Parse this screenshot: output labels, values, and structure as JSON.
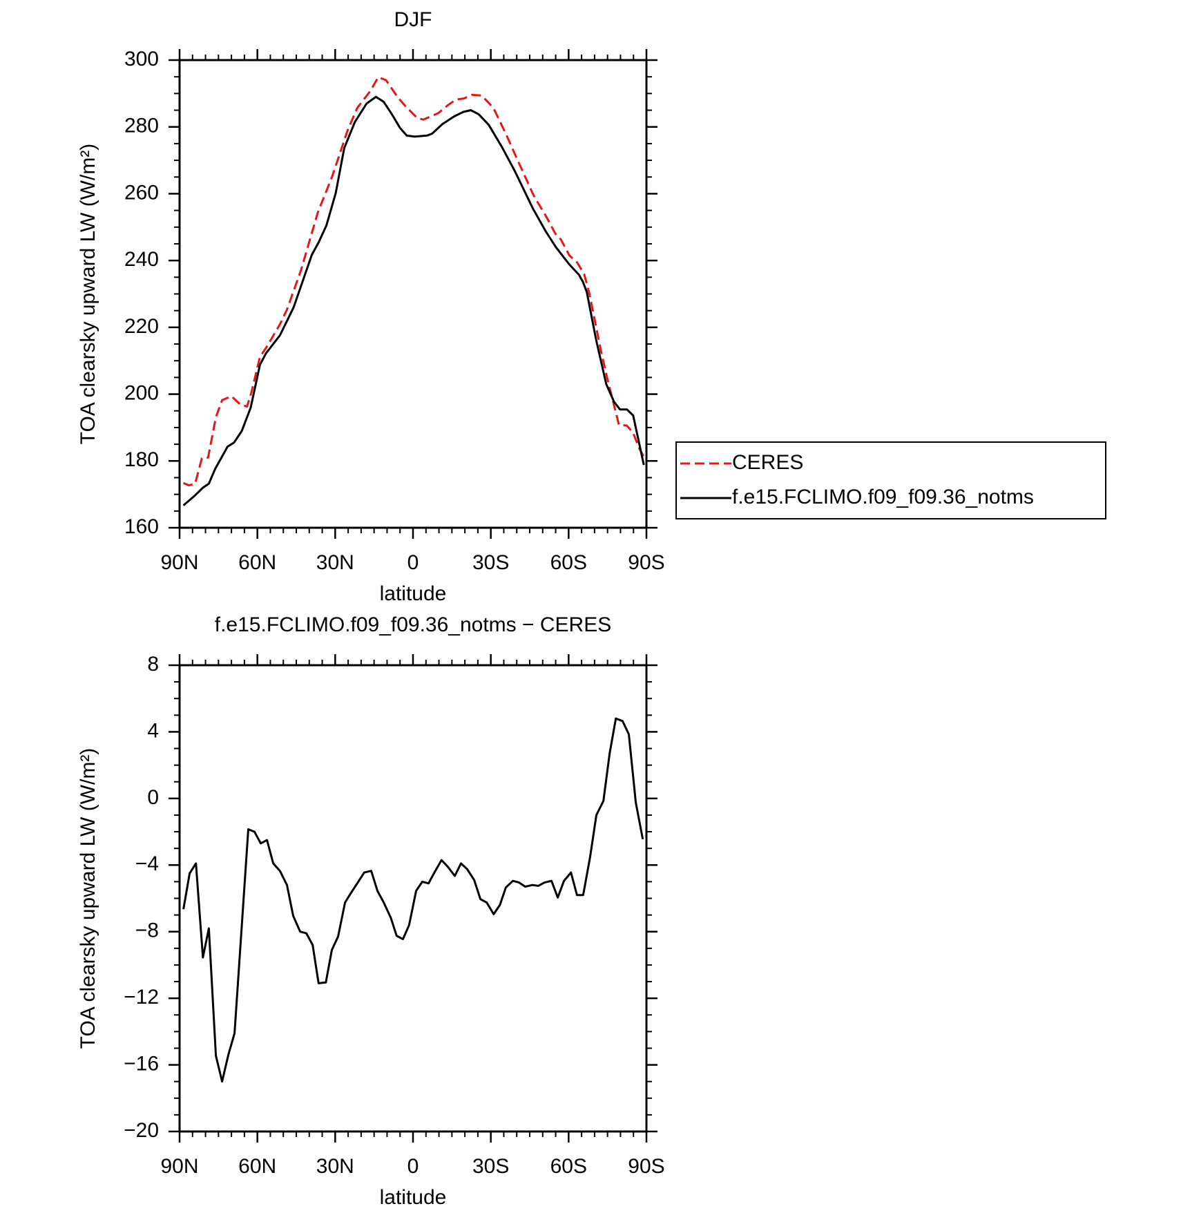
{
  "chart_data": [
    {
      "type": "line",
      "title": "DJF",
      "xlabel": "latitude",
      "ylabel": "TOA clearsky upward LW (W/m²)",
      "xlim": [
        90,
        -90
      ],
      "xticks": [
        {
          "value": 90,
          "label": "90N"
        },
        {
          "value": 60,
          "label": "60N"
        },
        {
          "value": 30,
          "label": "30N"
        },
        0,
        {
          "value": -30,
          "label": "30S"
        },
        {
          "value": -60,
          "label": "60S"
        },
        {
          "value": -90,
          "label": "90S"
        }
      ],
      "ylim": [
        160,
        300
      ],
      "yticks": [
        160,
        180,
        200,
        220,
        240,
        260,
        280,
        300
      ],
      "legend": "right",
      "series": [
        {
          "name": "CERES",
          "color": "#e8141a",
          "style": "dashed",
          "x": [
            88.5,
            86.4,
            84,
            81.4,
            79,
            76,
            73.6,
            70,
            66.5,
            64,
            62.3,
            59,
            56.6,
            51.3,
            48.6,
            43.2,
            36.7,
            31.3,
            28.3,
            25.3,
            21.5,
            16.4,
            13.4,
            10.4,
            5.9,
            2.9,
            -1.6,
            -4,
            -9.7,
            -13.6,
            -16.6,
            -19.6,
            -22.6,
            -26.5,
            -31,
            -36,
            -39.6,
            -46.5,
            -51.6,
            -54.9,
            -57,
            -60.3,
            -63.3,
            -66,
            -68,
            -72.5,
            -74.9,
            -77.9,
            -79.4,
            -82.4,
            -84.8,
            -87.2,
            -89.6
          ],
          "values": [
            173.4,
            172.7,
            173.2,
            180.8,
            181,
            193.1,
            198.2,
            199.4,
            196.8,
            196.3,
            200.5,
            211.2,
            213.9,
            220.9,
            225.3,
            237.1,
            254.4,
            264.9,
            271.8,
            278.8,
            285.7,
            290.8,
            294.9,
            294,
            288.9,
            286.2,
            282.7,
            282.2,
            284.1,
            286.6,
            288.2,
            288.5,
            289.6,
            289.4,
            285.7,
            277.6,
            271.3,
            259.5,
            252.8,
            248,
            246.3,
            241.5,
            239.4,
            235.9,
            230.1,
            212.8,
            204.7,
            195.4,
            190.8,
            190.6,
            188.5,
            183.8,
            180.4
          ]
        },
        {
          "name": "f.e15.FCLIMO.f09_f09.36_notms",
          "color": "#000000",
          "style": "solid",
          "x": [
            88.5,
            84,
            81,
            78.7,
            76.3,
            71.5,
            69,
            66,
            62.6,
            59,
            56.6,
            51.3,
            46,
            39,
            36.4,
            33.4,
            29.8,
            26.5,
            22.4,
            17.9,
            14.3,
            11.3,
            8.3,
            5,
            2.4,
            -0.6,
            -5.4,
            -7.4,
            -11.3,
            -15.8,
            -19.4,
            -22.3,
            -25.3,
            -29.2,
            -34.2,
            -39.3,
            -46.2,
            -51.2,
            -55.1,
            -60.2,
            -64,
            -65.5,
            -67,
            -70.6,
            -74.5,
            -77.5,
            -79.8,
            -82.5,
            -84.9,
            -89
          ],
          "values": [
            166.7,
            169.7,
            172,
            173.2,
            177.6,
            184.3,
            185.5,
            189,
            195.9,
            208.8,
            212.3,
            217.6,
            226,
            241.7,
            245.4,
            250.5,
            260.2,
            273.7,
            281.5,
            287,
            289,
            287.5,
            284,
            279.7,
            277.4,
            277.1,
            277.4,
            278,
            280.8,
            283.1,
            284.5,
            285,
            283.8,
            280.6,
            274.1,
            266.7,
            255.6,
            248.7,
            244,
            238.9,
            235.7,
            233.6,
            230.6,
            216.3,
            203,
            197.7,
            195.4,
            195.4,
            193.6,
            178.8
          ]
        }
      ]
    },
    {
      "type": "line",
      "title": "f.e15.FCLIMO.f09_f09.36_notms − CERES",
      "xlabel": "latitude",
      "ylabel": "TOA clearsky upward LW (W/m²)",
      "xlim": [
        90,
        -90
      ],
      "xticks": [
        {
          "value": 90,
          "label": "90N"
        },
        {
          "value": 60,
          "label": "60N"
        },
        {
          "value": 30,
          "label": "30N"
        },
        0,
        {
          "value": -30,
          "label": "30S"
        },
        {
          "value": -60,
          "label": "60S"
        },
        {
          "value": -90,
          "label": "90S"
        }
      ],
      "ylim": [
        -20,
        8
      ],
      "yticks": [
        {
          "value": -20,
          "label": "−20"
        },
        {
          "value": -16,
          "label": "−16"
        },
        {
          "value": -12,
          "label": "−12"
        },
        {
          "value": -8,
          "label": "−8"
        },
        {
          "value": -4,
          "label": "−4"
        },
        0,
        4,
        8
      ],
      "series": [
        {
          "color": "#000000",
          "style": "solid",
          "x": [
            88.5,
            86.1,
            83.7,
            81,
            78.7,
            76,
            73.6,
            71.2,
            68.8,
            63.5,
            61.1,
            58.7,
            56.3,
            53.9,
            51.3,
            48.6,
            46.2,
            43.5,
            41.1,
            38.7,
            36.4,
            33.6,
            31.3,
            28.9,
            26.2,
            23.8,
            21.1,
            18.8,
            16.1,
            13.7,
            11.3,
            8.6,
            6.3,
            3.9,
            1.5,
            -1.2,
            -3.6,
            -6,
            -8.6,
            -11,
            -13.4,
            -16.1,
            -18.5,
            -20.9,
            -23.6,
            -26,
            -28.4,
            -31.1,
            -33.5,
            -35.8,
            -38.5,
            -40.9,
            -43.3,
            -46,
            -48.3,
            -50.7,
            -53.4,
            -55.8,
            -58.2,
            -60.9,
            -63.2,
            -65.6,
            -68.3,
            -70.7,
            -73.4,
            -75.8,
            -78.2,
            -80.8,
            -83.2,
            -85.9,
            -88.6
          ],
          "values": [
            -6.65,
            -4.5,
            -3.9,
            -9.55,
            -7.8,
            -15.45,
            -17,
            -15.4,
            -14.1,
            -1.85,
            -2,
            -2.7,
            -2.5,
            -3.9,
            -4.35,
            -5.2,
            -7.05,
            -8,
            -8.1,
            -8.8,
            -11.1,
            -11.05,
            -9.1,
            -8.3,
            -6.25,
            -5.65,
            -5,
            -4.45,
            -4.35,
            -5.55,
            -6.25,
            -7.15,
            -8.25,
            -8.45,
            -7.6,
            -5.55,
            -5,
            -5.1,
            -4.35,
            -3.7,
            -4.1,
            -4.65,
            -3.9,
            -4.25,
            -4.9,
            -6.05,
            -6.25,
            -6.95,
            -6.4,
            -5.35,
            -4.95,
            -5.05,
            -5.3,
            -5.2,
            -5.25,
            -5.05,
            -4.95,
            -5.95,
            -4.95,
            -4.45,
            -5.8,
            -5.8,
            -3.5,
            -1,
            -0.15,
            2.7,
            4.8,
            4.65,
            3.85,
            -0.25,
            -2.45
          ]
        }
      ]
    }
  ]
}
